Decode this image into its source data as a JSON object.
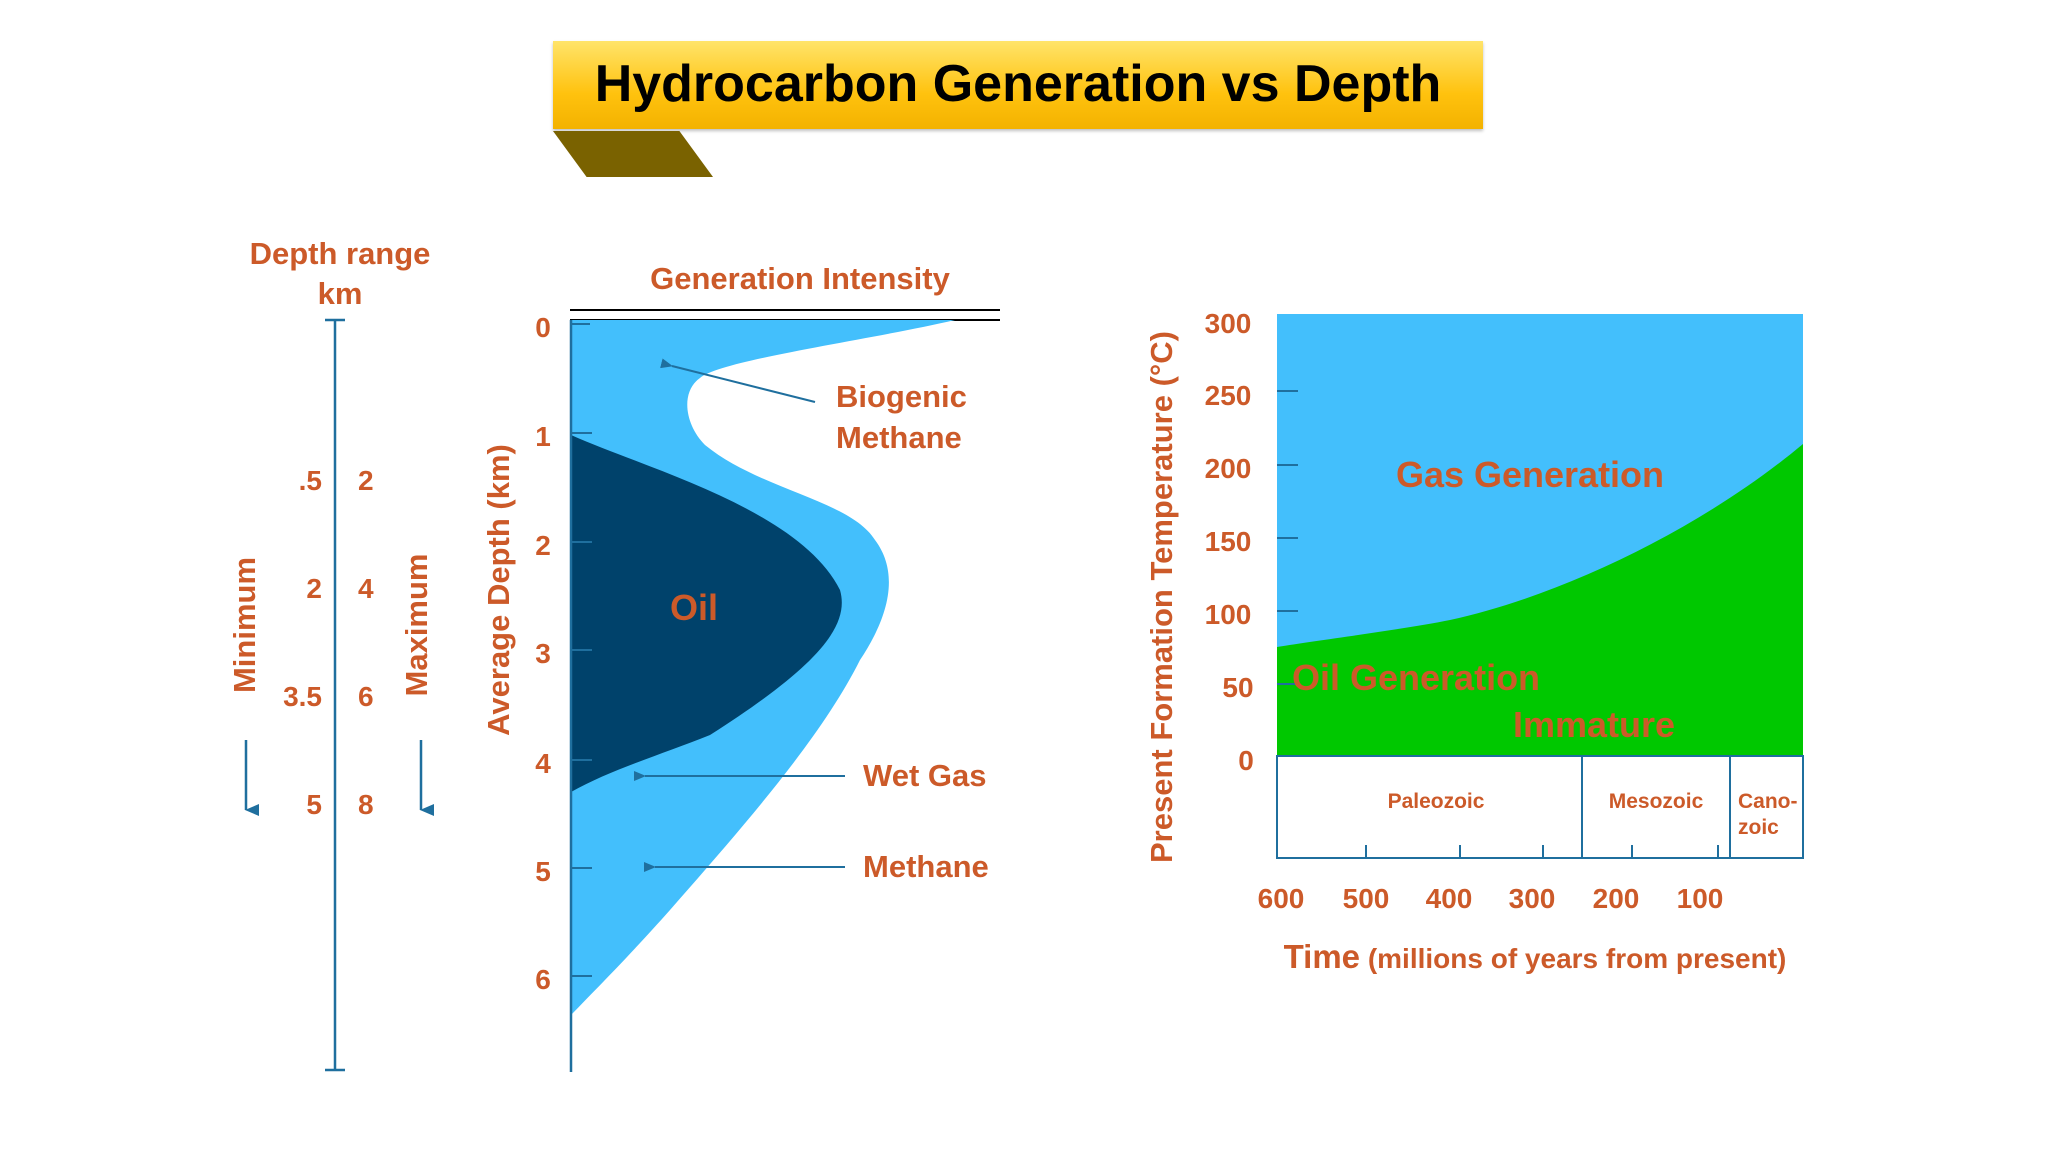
{
  "title": "Hydrocarbon Generation vs Depth",
  "colors": {
    "title_gold": "#ffc20e",
    "title_tab": "#7a6200",
    "label_orange": "#cc5a29",
    "light_blue": "#43bffc",
    "dark_navy": "#00426b",
    "green": "#00c800",
    "axis_blue": "#1f6f9e"
  },
  "depth_range": {
    "heading_line1": "Depth range",
    "heading_line2": "km",
    "minimum_label": "Minimum",
    "maximum_label": "Maximum",
    "rows": [
      {
        "min": ".5",
        "max": "2"
      },
      {
        "min": "2",
        "max": "4"
      },
      {
        "min": "3.5",
        "max": "6"
      },
      {
        "min": "5",
        "max": "8"
      }
    ]
  },
  "generation_chart": {
    "title": "Generation Intensity",
    "ylabel": "Average Depth (km)",
    "y_ticks": [
      "0",
      "1",
      "2",
      "3",
      "4",
      "5",
      "6"
    ],
    "zones": {
      "oil": "Oil",
      "biogenic_line1": "Biogenic",
      "biogenic_line2": "Methane",
      "wet_gas": "Wet Gas",
      "methane": "Methane"
    }
  },
  "temperature_chart": {
    "ylabel": "Present Formation Temperature (°C)",
    "y_ticks": [
      "300",
      "250",
      "200",
      "150",
      "100",
      "50",
      "0"
    ],
    "gas_label": "Gas Generation",
    "oil_label": "Oil Generation",
    "immature_label": "Immature",
    "eras": {
      "paleozoic": "Paleozoic",
      "mesozoic": "Mesozoic",
      "cenozoic_line1": "Cano-",
      "cenozoic_line2": "zoic"
    },
    "x_ticks": [
      "600",
      "500",
      "400",
      "300",
      "200",
      "100"
    ],
    "xlabel_main": "Time",
    "xlabel_sub": " (millions of years from present)"
  }
}
